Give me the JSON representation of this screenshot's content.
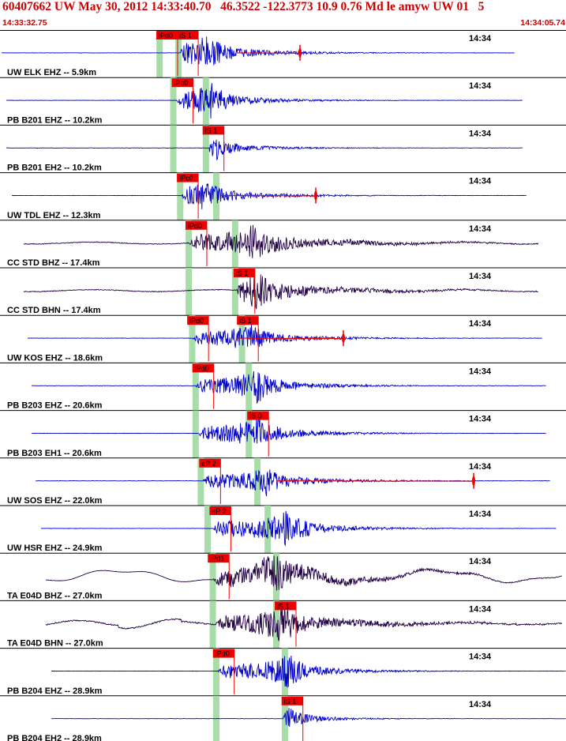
{
  "header": {
    "title": "60407662 UW May 30, 2012 14:33:40.70   46.3522 -122.3773 10.9 0.76 Md le amyw UW 01   5",
    "time_start": "14:33:32.75",
    "time_end": "14:34:05.74"
  },
  "colors": {
    "trace_blue": "#0000cc",
    "trace_purple": "#220044",
    "pick_red": "#ee0000",
    "green_band": "#a8dca8",
    "separator": "#000000"
  },
  "chart_data": {
    "type": "line",
    "time_axis": {
      "start": "14:33:32.75",
      "end": "14:34:05.74",
      "tick_label": "14:34"
    },
    "channels": [
      {
        "label": "UW ELK EHZ -- 5.9km",
        "picks": [
          {
            "label": "iPd0",
            "t": 9.2
          },
          {
            "label": "iS 1",
            "t": 10.4
          }
        ],
        "green": [
          9.3,
          10.4
        ]
      },
      {
        "label": "PB B201 EHZ -- 10.2km",
        "picks": [
          {
            "label": "iPc0",
            "t": 10.1
          }
        ],
        "green": [
          10.1,
          12.0
        ]
      },
      {
        "label": "PB B201 EH2 -- 10.2km",
        "picks": [
          {
            "label": "iS 1",
            "t": 11.9
          }
        ],
        "green": [
          10.1,
          12.0
        ]
      },
      {
        "label": "UW TDL EHZ -- 12.3km",
        "picks": [
          {
            "label": "iPc0",
            "t": 10.4
          }
        ],
        "green": [
          10.5,
          12.6
        ]
      },
      {
        "label": "CC STD BHZ -- 17.4km",
        "picks": [
          {
            "label": "iPd0",
            "t": 10.9
          }
        ],
        "green": [
          11.0,
          13.7
        ]
      },
      {
        "label": "CC STD BHN -- 17.4km",
        "picks": [
          {
            "label": "iS 1",
            "t": 13.7
          }
        ],
        "green": [
          11.0,
          13.7
        ]
      },
      {
        "label": "UW KOS EHZ -- 18.6km",
        "picks": [
          {
            "label": "iPd0",
            "t": 11.0
          },
          {
            "label": "iS 1",
            "t": 13.9
          }
        ],
        "green": [
          11.2,
          14.1
        ]
      },
      {
        "label": "PB B203 EHZ -- 20.6km",
        "picks": [
          {
            "label": "iPd0",
            "t": 11.3
          }
        ],
        "green": [
          11.4,
          14.5
        ]
      },
      {
        "label": "PB B203 EH1 -- 20.6km",
        "picks": [
          {
            "label": "iS 0",
            "t": 14.5
          }
        ],
        "green": [
          11.4,
          14.5
        ]
      },
      {
        "label": "UW SOS EHZ -- 22.0km",
        "picks": [
          {
            "label": "eP 2",
            "t": 11.7
          }
        ],
        "green": [
          11.7,
          15.0
        ]
      },
      {
        "label": "UW HSR EHZ -- 24.9km",
        "picks": [
          {
            "label": "eP 2",
            "t": 12.3
          }
        ],
        "green": [
          12.1,
          15.6
        ]
      },
      {
        "label": "TA E04D BHZ -- 27.0km",
        "picks": [
          {
            "label": "iPd1",
            "t": 12.2
          }
        ],
        "green": [
          12.4,
          16.1
        ]
      },
      {
        "label": "TA E04D BHN -- 27.0km",
        "picks": [
          {
            "label": "iS 1",
            "t": 16.1
          }
        ],
        "green": [
          12.4,
          16.1
        ]
      },
      {
        "label": "PB B204 EHZ -- 28.9km",
        "picks": [
          {
            "label": "iPd0",
            "t": 12.5
          }
        ],
        "green": [
          12.6,
          16.6
        ]
      },
      {
        "label": "PB B204 EH2 -- 28.9km",
        "picks": [
          {
            "label": "iS 1",
            "t": 16.5
          }
        ],
        "green": [
          12.6,
          16.6
        ]
      }
    ]
  }
}
